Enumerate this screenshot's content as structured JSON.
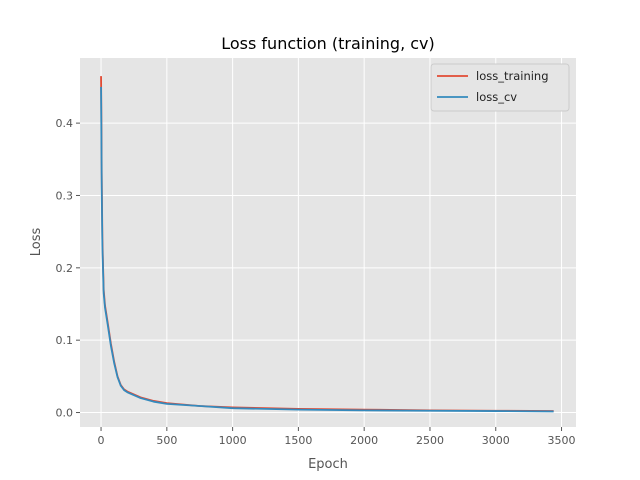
{
  "chart_data": {
    "type": "line",
    "title": "Loss function (training, cv)",
    "xlabel": "Epoch",
    "ylabel": "Loss",
    "xlim": [
      -160,
      3610
    ],
    "ylim": [
      -0.02,
      0.49
    ],
    "xticks": [
      0,
      500,
      1000,
      1500,
      2000,
      2500,
      3000,
      3500
    ],
    "yticks": [
      0.0,
      0.1,
      0.2,
      0.3,
      0.4
    ],
    "ytick_labels": [
      "0.0",
      "0.1",
      "0.2",
      "0.3",
      "0.4"
    ],
    "grid": true,
    "legend": "top-right",
    "colors": {
      "background": "#e5e5e5",
      "grid": "#ffffff"
    },
    "series": [
      {
        "name": "loss_training",
        "color": "#e24a33",
        "x": [
          0,
          2,
          5,
          10,
          20,
          30,
          50,
          75,
          100,
          125,
          150,
          175,
          200,
          250,
          300,
          400,
          500,
          750,
          1000,
          1500,
          2000,
          2500,
          3000,
          3440
        ],
        "y": [
          0.465,
          0.42,
          0.33,
          0.24,
          0.17,
          0.148,
          0.125,
          0.095,
          0.07,
          0.05,
          0.038,
          0.032,
          0.029,
          0.025,
          0.021,
          0.016,
          0.013,
          0.009,
          0.007,
          0.005,
          0.004,
          0.003,
          0.0025,
          0.002
        ]
      },
      {
        "name": "loss_cv",
        "color": "#348abd",
        "x": [
          0,
          2,
          5,
          10,
          20,
          30,
          50,
          75,
          100,
          125,
          150,
          175,
          200,
          250,
          300,
          400,
          500,
          750,
          1000,
          1500,
          2000,
          2500,
          3000,
          3440
        ],
        "y": [
          0.45,
          0.4,
          0.31,
          0.23,
          0.165,
          0.145,
          0.122,
          0.092,
          0.068,
          0.049,
          0.037,
          0.031,
          0.028,
          0.024,
          0.02,
          0.015,
          0.012,
          0.009,
          0.006,
          0.004,
          0.003,
          0.0025,
          0.002,
          0.0015
        ]
      }
    ]
  }
}
